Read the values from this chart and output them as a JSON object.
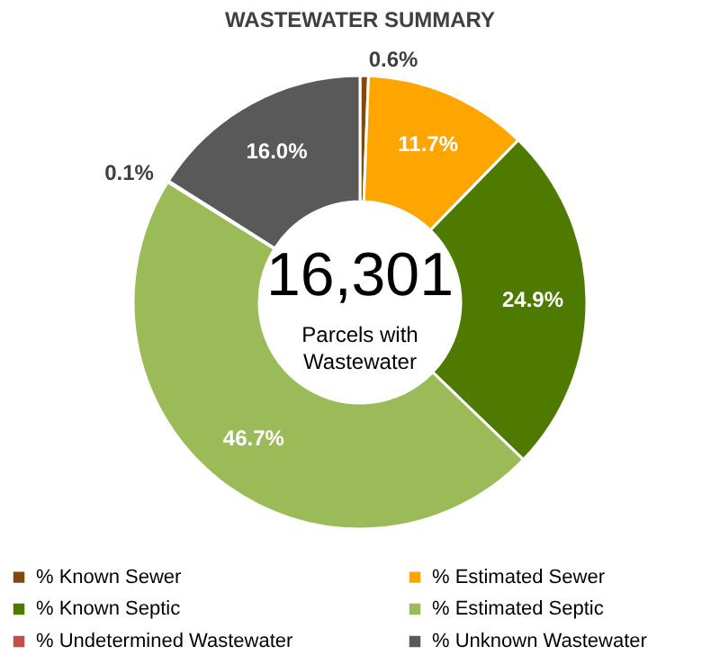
{
  "chart_data": {
    "type": "donut",
    "title": "WASTEWATER SUMMARY",
    "categories": [
      "% Known Sewer",
      "% Estimated Sewer",
      "% Known Septic",
      "% Estimated Septic",
      "% Undetermined Wastewater",
      "% Unknown Wastewater"
    ],
    "values": [
      0.6,
      11.7,
      24.9,
      46.7,
      0.1,
      16.0
    ],
    "colors": [
      "#7f4a10",
      "#ffa500",
      "#4f7a00",
      "#9bbb59",
      "#c0504d",
      "#595959"
    ],
    "value_labels": [
      "0.6%",
      "11.7%",
      "24.9%",
      "46.7%",
      "0.1%",
      "16.0%"
    ],
    "legend": "bottom",
    "annotations": [
      "16,301",
      "Parcels with Wastewater"
    ]
  }
}
